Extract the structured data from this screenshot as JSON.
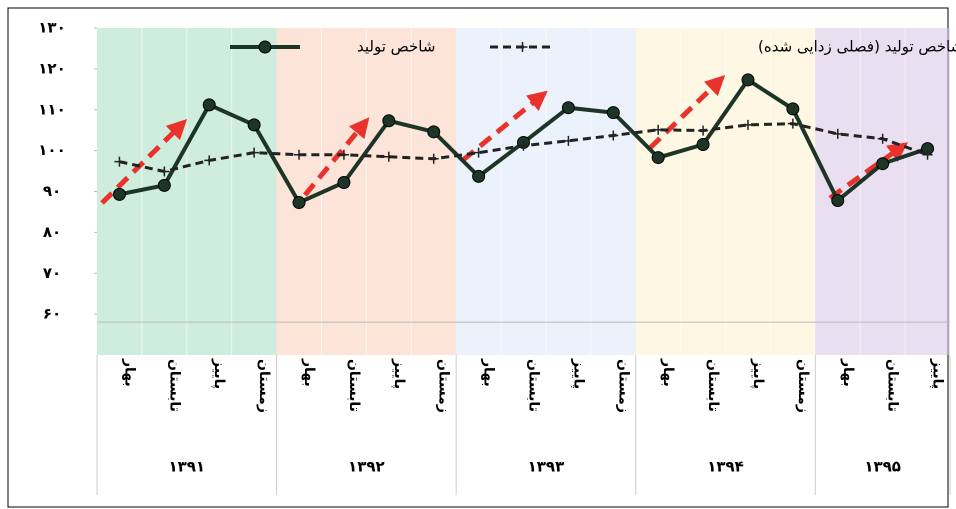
{
  "chart_data": {
    "type": "line",
    "categories": [
      "بهار",
      "تابستان",
      "پاییز",
      "زمستان",
      "بهار",
      "تابستان",
      "پاییز",
      "زمستان",
      "بهار",
      "تابستان",
      "پاییز",
      "زمستان",
      "بهار",
      "تابستان",
      "پاییز",
      "زمستان",
      "بهار",
      "تابستان",
      "پاییز"
    ],
    "groups": [
      {
        "name": "۱۳۹۱",
        "size": 4,
        "color": "#2fb36a"
      },
      {
        "name": "۱۳۹۲",
        "size": 4,
        "color": "#f08a5a"
      },
      {
        "name": "۱۳۹۳",
        "size": 4,
        "color": "#a9c6ee"
      },
      {
        "name": "۱۳۹۴",
        "size": 4,
        "color": "#f7d98a"
      },
      {
        "name": "۱۳۹۵",
        "size": 3,
        "color": "#a472c2"
      }
    ],
    "series": [
      {
        "name": "شاخص تولید",
        "color": "#1c3526",
        "values": [
          89.3,
          91.5,
          111.2,
          106.3,
          87.3,
          92.2,
          107.3,
          104.6,
          93.7,
          102,
          110.5,
          109.3,
          98.3,
          101.5,
          117.3,
          110.2,
          87.8,
          96.8,
          100.5
        ]
      },
      {
        "name": "شاخص تولید (فصلی زدایی شده)",
        "color": "#222222",
        "values": [
          97.3,
          94.9,
          97.6,
          99.5,
          99,
          99,
          98.5,
          98,
          99.5,
          101.2,
          102.4,
          103.7,
          105.1,
          104.9,
          106.3,
          106.6,
          104.1,
          102.9,
          99
        ]
      }
    ],
    "ylim": [
      50,
      130
    ],
    "yticks": [
      {
        "value": 60,
        "label": "۶۰"
      },
      {
        "value": 70,
        "label": "۷۰"
      },
      {
        "value": 80,
        "label": "۸۰"
      },
      {
        "value": 90,
        "label": "۹۰"
      },
      {
        "value": 100,
        "label": "۱۰۰"
      },
      {
        "value": 110,
        "label": "۱۱۰"
      },
      {
        "value": 120,
        "label": "۱۲۰"
      },
      {
        "value": 130,
        "label": "۱۳۰"
      }
    ]
  }
}
